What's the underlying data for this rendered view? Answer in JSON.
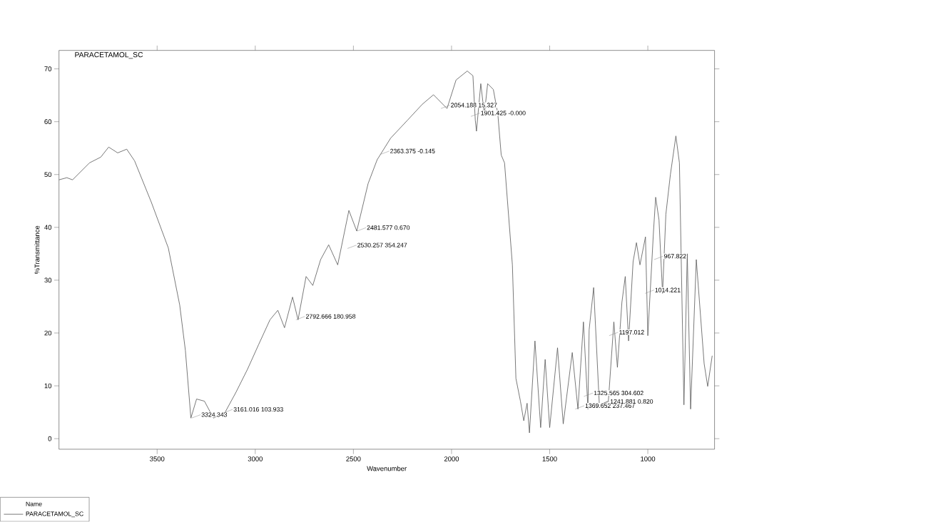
{
  "chart_data": {
    "type": "line",
    "title": "PARACETAMOL_SC",
    "xlabel": "Wavenumber",
    "ylabel": "%Transmittance",
    "legend_title": "Name",
    "legend": "bottom left",
    "xlim": [
      4000,
      660
    ],
    "ylim": [
      -2,
      73.5
    ],
    "xticks": [
      3500,
      3000,
      2500,
      2000,
      1500,
      1000
    ],
    "yticks": [
      0,
      10,
      20,
      30,
      40,
      50,
      60,
      70
    ],
    "series": [
      {
        "name": "PARACETAMOL_SC",
        "color": "#555555",
        "x": [
          4000,
          3960,
          3931,
          3845,
          3787,
          3747,
          3701,
          3655,
          3615,
          3529,
          3443,
          3385,
          3356,
          3328,
          3299,
          3259,
          3213,
          3155,
          3098,
          3040,
          2983,
          2925,
          2885,
          2851,
          2810,
          2782,
          2741,
          2707,
          2667,
          2626,
          2580,
          2523,
          2483,
          2425,
          2379,
          2310,
          2224,
          2149,
          2092,
          2023,
          1977,
          1920,
          1891,
          1879,
          1873,
          1851,
          1833,
          1816,
          1787,
          1764,
          1747,
          1730,
          1690,
          1672,
          1649,
          1632,
          1615,
          1603,
          1575,
          1546,
          1523,
          1500,
          1460,
          1431,
          1385,
          1356,
          1328,
          1305,
          1299,
          1276,
          1247,
          1201,
          1173,
          1155,
          1132,
          1115,
          1098,
          1075,
          1058,
          1040,
          1012,
          1000,
          971,
          960,
          943,
          925,
          908,
          885,
          857,
          839,
          816,
          799,
          782,
          753,
          713,
          695,
          672
        ],
        "values": [
          49,
          49.4,
          49,
          52.2,
          53.3,
          55.2,
          54.1,
          54.8,
          52.6,
          44.7,
          36.1,
          25.3,
          16.7,
          3.9,
          7.5,
          7.1,
          3.9,
          4.9,
          8.8,
          13.1,
          17.8,
          22.5,
          24.3,
          21,
          26.8,
          22.5,
          30.7,
          29,
          33.9,
          36.7,
          32.9,
          43.2,
          39.3,
          48.3,
          52.8,
          56.9,
          60.3,
          63.3,
          65.1,
          62.5,
          67.9,
          69.6,
          68.7,
          60.3,
          58.2,
          67.2,
          61.4,
          67.2,
          66.1,
          61.4,
          53.7,
          52.2,
          32.9,
          11.4,
          7.1,
          3.4,
          6.7,
          1.1,
          18.5,
          2.1,
          15,
          2.1,
          17.2,
          2.8,
          16.3,
          5.6,
          22.1,
          5.6,
          20.6,
          28.6,
          6.4,
          7.1,
          22.1,
          13.5,
          25.8,
          30.7,
          18.5,
          33.5,
          37.1,
          32.9,
          38.2,
          19.5,
          39.3,
          45.7,
          41.4,
          27.5,
          42.5,
          50,
          57.3,
          52.2,
          6.4,
          35,
          5.6,
          33.9,
          14.2,
          9.9,
          15.7
        ]
      }
    ],
    "annotations": [
      {
        "text": "2054.188 15.327",
        "x": 2054.188,
        "y": 62.5
      },
      {
        "text": "1901.425 -0.000",
        "x": 1901.425,
        "y": 61
      },
      {
        "text": "2481.577 0.670",
        "x": 2481.577,
        "y": 39.3
      },
      {
        "text": "2530.257 354.247",
        "x": 2530.257,
        "y": 36
      },
      {
        "text": "2363.375 -0.145",
        "x": 2363.375,
        "y": 53.8
      },
      {
        "text": "2792.666 180.958",
        "x": 2792.666,
        "y": 22.5
      },
      {
        "text": "3324.343",
        "x": 3324.343,
        "y": 3.9
      },
      {
        "text": "3161.016 103.933",
        "x": 3161.016,
        "y": 4.9
      },
      {
        "text": "1325.565 304.602",
        "x": 1325.565,
        "y": 8
      },
      {
        "text": "1369.652 237.467",
        "x": 1369.652,
        "y": 5.6
      },
      {
        "text": "1241.881 0.820",
        "x": 1241.881,
        "y": 6.4
      },
      {
        "text": "1197.012",
        "x": 1197.012,
        "y": 19.5
      },
      {
        "text": "1014.221",
        "x": 1014.221,
        "y": 27.5
      },
      {
        "text": "967.822",
        "x": 967.822,
        "y": 33.9
      }
    ]
  }
}
